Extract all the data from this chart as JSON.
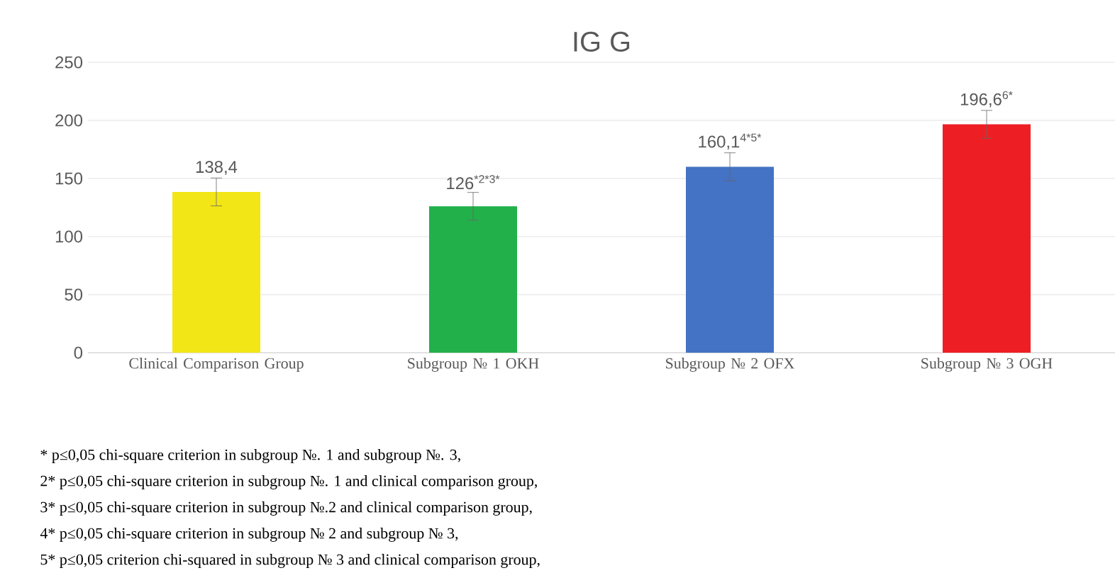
{
  "chart_data": {
    "type": "bar",
    "title": "IG G",
    "categories": [
      "Clinical Comparison Group",
      "Subgroup № 1 OKH",
      "Subgroup № 2 OFX",
      "Subgroup № 3 OGH"
    ],
    "values": [
      138.4,
      126,
      160.1,
      196.6
    ],
    "colors": [
      "#f2e617",
      "#22b04b",
      "#4472c4",
      "#ee1f24"
    ],
    "errors": [
      12,
      12,
      12,
      12
    ],
    "value_labels": [
      "138,4",
      "126$^{*2*3*}$",
      "160,1$^{4*5*}$",
      "196,6$^{6*}$"
    ],
    "ylim": [
      0,
      250
    ],
    "yticks": [
      0,
      50,
      100,
      150,
      200,
      250
    ],
    "grid": "y",
    "annotations": [
      "*  p≤0,05 chi-square criterion in subgroup №. 1 and subgroup №. 3,",
      "2* p≤0,05 chi-square criterion in subgroup №. 1 and clinical comparison group,",
      "3* p≤0,05 chi-square criterion in subgroup №.2 and clinical comparison group,",
      "4* p≤0,05 chi-square criterion in subgroup № 2 and subgroup № 3,",
      "5* p≤0,05 criterion chi-squared in subgroup № 3 and clinical comparison group,"
    ]
  }
}
